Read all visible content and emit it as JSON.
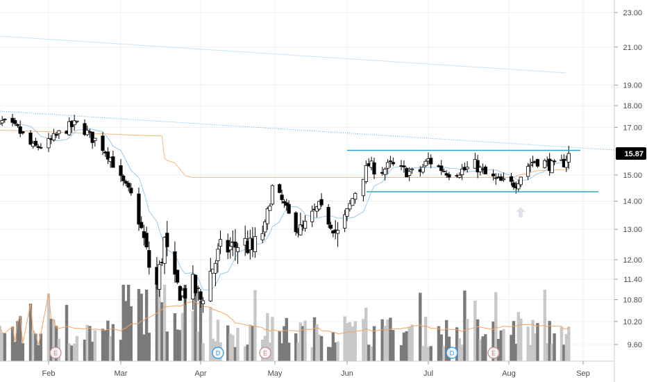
{
  "chart_data": {
    "type": "candlestick",
    "price_axis": {
      "ticks": [
        "23.00",
        "21.00",
        "19.00",
        "18.00",
        "17.00",
        "15.00",
        "14.00",
        "13.00",
        "12.00",
        "11.40",
        "10.80",
        "10.20",
        "9.60"
      ],
      "scale": "log",
      "last_price": "15.87"
    },
    "time_axis": {
      "ticks": [
        "Feb",
        "Mar",
        "Apr",
        "May",
        "Jun",
        "Jul",
        "Aug",
        "Sep"
      ]
    },
    "events": [
      {
        "label": "E",
        "date": "Feb"
      },
      {
        "label": "D",
        "date": "Apr"
      },
      {
        "label": "E",
        "date": "May"
      },
      {
        "label": "D",
        "date": "Jul"
      },
      {
        "label": "E",
        "date": "Aug"
      }
    ],
    "drawings": {
      "resistance_level": 16.0,
      "support_level": 14.35,
      "range_start": "Jun",
      "range_end": "Aug"
    },
    "grid": true,
    "colors": {
      "up_candle": "#ffffff",
      "down_candle": "#000000",
      "ma_fast": "#90c4e4",
      "ma_slow": "#f4a460",
      "trendline": "#2196f3",
      "range_lines": "#2aa4c8",
      "volume_up": "#c8c8c8",
      "volume_down": "#7a7a7a",
      "price_badge": "#000000",
      "event_earnings": "#c88a8a",
      "event_dividend": "#2196f3"
    }
  }
}
